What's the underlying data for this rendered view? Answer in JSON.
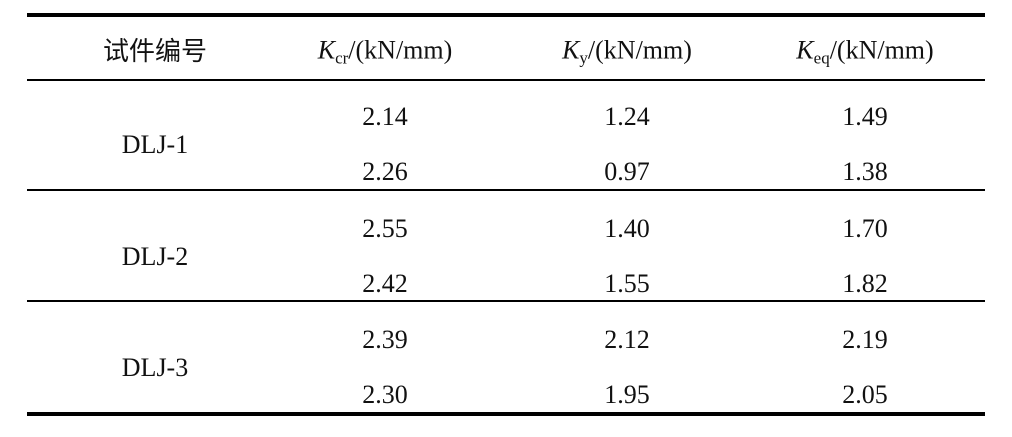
{
  "table": {
    "header": [
      {
        "text": "试件编号"
      },
      {
        "symbol": "K",
        "subscript": "cr",
        "unit": "/(kN/mm)"
      },
      {
        "symbol": "K",
        "subscript": "y",
        "unit": "/(kN/mm)"
      },
      {
        "symbol": "K",
        "subscript": "eq",
        "unit": "/(kN/mm)"
      }
    ],
    "groups": [
      {
        "specimen": "DLJ-1",
        "rows": [
          [
            "2.14",
            "1.24",
            "1.49"
          ],
          [
            "2.26",
            "0.97",
            "1.38"
          ]
        ]
      },
      {
        "specimen": "DLJ-2",
        "rows": [
          [
            "2.55",
            "1.40",
            "1.70"
          ],
          [
            "2.42",
            "1.55",
            "1.82"
          ]
        ]
      },
      {
        "specimen": "DLJ-3",
        "rows": [
          [
            "2.39",
            "2.12",
            "2.19"
          ],
          [
            "2.30",
            "1.95",
            "2.05"
          ]
        ]
      }
    ]
  }
}
